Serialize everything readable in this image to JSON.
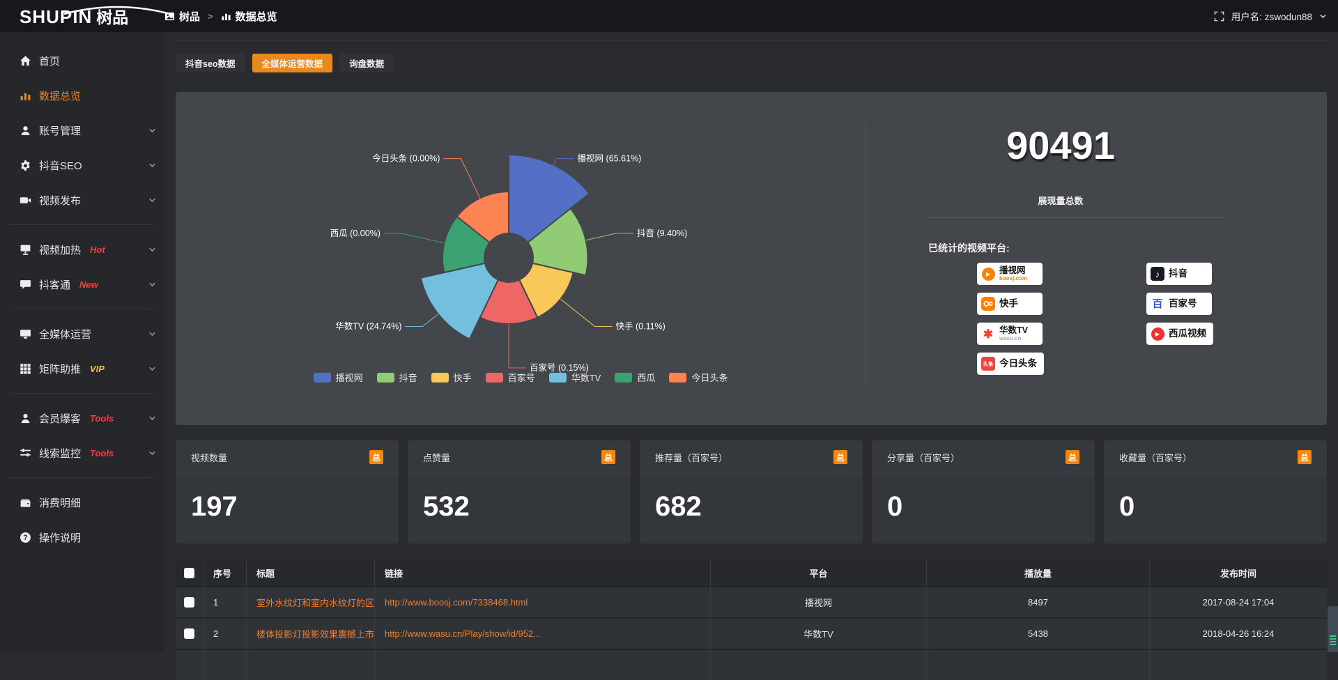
{
  "topbar": {
    "logo_text": "SHUPIN",
    "logo_suffix": "树品",
    "breadcrumb": [
      "树品",
      "数据总览"
    ],
    "breadcrumb_sep": ">",
    "user_label": "用户名: zswodun88"
  },
  "sidebar": {
    "items": [
      {
        "label": "首页",
        "icon": "home"
      },
      {
        "label": "数据总览",
        "icon": "chart",
        "active": true
      },
      {
        "label": "账号管理",
        "icon": "user",
        "chevron": true
      },
      {
        "label": "抖音SEO",
        "icon": "gear",
        "chevron": true
      },
      {
        "label": "视频发布",
        "icon": "camera",
        "chevron": true,
        "divider_after": true
      },
      {
        "label": "视频加热",
        "icon": "heat",
        "badge": "Hot",
        "badge_color": "red",
        "chevron": true
      },
      {
        "label": "抖客通",
        "icon": "chat",
        "badge": "New",
        "badge_color": "red",
        "chevron": true,
        "divider_after": true
      },
      {
        "label": "全媒体运营",
        "icon": "screen",
        "chevron": true
      },
      {
        "label": "矩阵助推",
        "icon": "grid",
        "badge": "VIP",
        "badge_color": "gold",
        "chevron": true,
        "divider_after": true
      },
      {
        "label": "会员爆客",
        "icon": "person",
        "badge": "Tools",
        "badge_color": "red",
        "chevron": true
      },
      {
        "label": "线索监控",
        "icon": "sliders",
        "badge": "Tools",
        "badge_color": "red",
        "chevron": true,
        "divider_after": true
      },
      {
        "label": "消费明细",
        "icon": "wallet"
      },
      {
        "label": "操作说明",
        "icon": "question"
      }
    ]
  },
  "tabs": [
    {
      "label": "抖音seo数据",
      "active": false
    },
    {
      "label": "全媒体运营数据",
      "active": true
    },
    {
      "label": "询盘数据",
      "active": false
    }
  ],
  "chart_data": {
    "type": "pie",
    "subtype": "nightingale-rose",
    "unit": "%",
    "slices": [
      {
        "name": "播视网",
        "pct": 65.61,
        "color": "#5470c6"
      },
      {
        "name": "抖音",
        "pct": 9.4,
        "color": "#91cc75"
      },
      {
        "name": "快手",
        "pct": 0.11,
        "color": "#fac858"
      },
      {
        "name": "百家号",
        "pct": 0.15,
        "color": "#ee6666"
      },
      {
        "name": "华数TV",
        "pct": 24.74,
        "color": "#73c0de"
      },
      {
        "name": "西瓜",
        "pct": 0,
        "color": "#3ba272"
      },
      {
        "name": "今日头条",
        "pct": 0,
        "color": "#fc8452"
      }
    ],
    "legend_position": "bottom",
    "label_format": "{name} ({pct}%)"
  },
  "summary": {
    "total_value": "90491",
    "total_label": "展现量总数",
    "platforms_label": "已统计的视频平台:",
    "platform_columns": [
      [
        {
          "id": "boosj",
          "name": "播视网",
          "sub": "boosj.com"
        },
        {
          "id": "kuaishou",
          "name": "快手"
        },
        {
          "id": "wasu",
          "name": "华数TV",
          "sub": "wasu.cn"
        },
        {
          "id": "toutiao",
          "name": "今日头条"
        }
      ],
      [
        {
          "id": "douyin",
          "name": "抖音"
        },
        {
          "id": "baijiahao",
          "name": "百家号"
        },
        {
          "id": "xigua",
          "name": "西瓜视频"
        }
      ]
    ]
  },
  "stat_cards": [
    {
      "title": "视频数量",
      "badge": "总",
      "value": "197"
    },
    {
      "title": "点赞量",
      "badge": "总",
      "value": "532"
    },
    {
      "title": "推荐量（百家号）",
      "badge": "总",
      "value": "682"
    },
    {
      "title": "分享量（百家号）",
      "badge": "总",
      "value": "0"
    },
    {
      "title": "收藏量（百家号）",
      "badge": "总",
      "value": "0"
    }
  ],
  "table": {
    "headers": [
      "序号",
      "标题",
      "链接",
      "平台",
      "播放量",
      "发布时间"
    ],
    "rows": [
      {
        "num": "1",
        "title": "室外水纹灯和室内水纹灯的区别和简介",
        "link": "http://www.boosj.com/7338468.html",
        "platform": "播视网",
        "views": "8497",
        "time": "2017-08-24 17:04"
      },
      {
        "num": "2",
        "title": "楼体投影灯投影效果震撼上市",
        "link": "http://www.wasu.cn/Play/show/id/952...",
        "platform": "华数TV",
        "views": "5438",
        "time": "2018-04-26 16:24"
      }
    ]
  }
}
